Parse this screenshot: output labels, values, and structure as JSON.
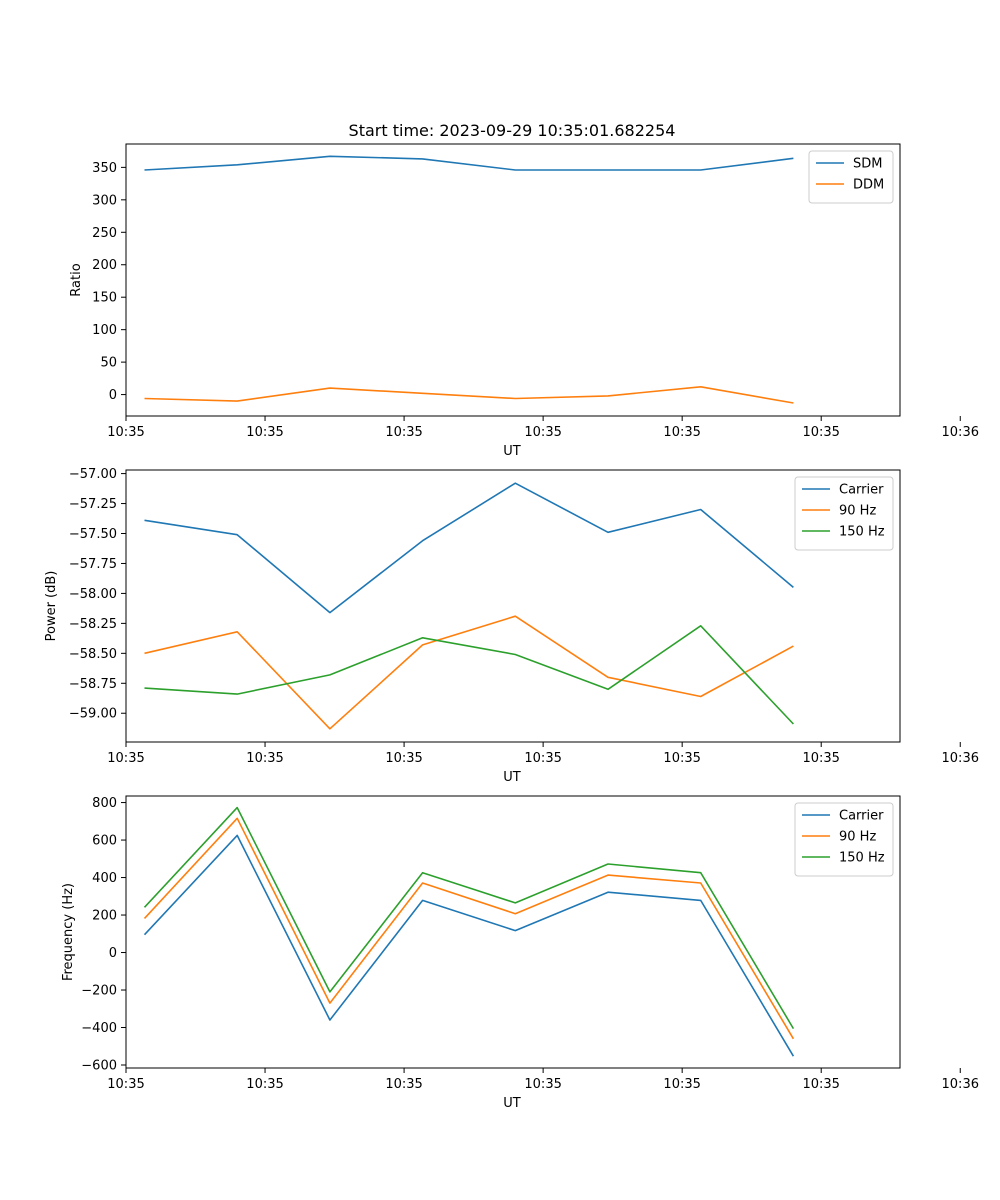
{
  "title": "Start time: 2023-09-29 10:35:01.682254",
  "chart_data": [
    {
      "type": "line",
      "title": "Start time: 2023-09-29 10:35:01.682254",
      "xlabel": "UT",
      "ylabel": "Ratio",
      "x": [
        1,
        2,
        3,
        4,
        5,
        6,
        7,
        8
      ],
      "xlim": [
        0.8,
        9.15
      ],
      "ylim": [
        -33,
        386
      ],
      "xticks": [
        0.8,
        2.3,
        3.8,
        5.3,
        6.8,
        8.3,
        9.8
      ],
      "xtick_labels": [
        "10:35",
        "10:35",
        "10:35",
        "10:35",
        "10:35",
        "10:35",
        "10:36"
      ],
      "yticks": [
        0,
        50,
        100,
        150,
        200,
        250,
        300,
        350
      ],
      "ytick_labels": [
        "0",
        "50",
        "100",
        "150",
        "200",
        "250",
        "300",
        "350"
      ],
      "legend": "top-right",
      "series": [
        {
          "name": "SDM",
          "color": "#1f77b4",
          "values": [
            346,
            354,
            367,
            363,
            346,
            346,
            346,
            364
          ]
        },
        {
          "name": "DDM",
          "color": "#ff7f0e",
          "values": [
            -6,
            -10,
            10,
            2,
            -6,
            -2,
            12,
            -13
          ]
        }
      ]
    },
    {
      "type": "line",
      "xlabel": "UT",
      "ylabel": "Power (dB)",
      "x": [
        1,
        2,
        3,
        4,
        5,
        6,
        7,
        8
      ],
      "xlim": [
        0.8,
        9.15
      ],
      "ylim": [
        -59.24,
        -56.97
      ],
      "xticks": [
        0.8,
        2.3,
        3.8,
        5.3,
        6.8,
        8.3,
        9.8
      ],
      "xtick_labels": [
        "10:35",
        "10:35",
        "10:35",
        "10:35",
        "10:35",
        "10:35",
        "10:36"
      ],
      "yticks": [
        -59.0,
        -58.75,
        -58.5,
        -58.25,
        -58.0,
        -57.75,
        -57.5,
        -57.25,
        -57.0
      ],
      "ytick_labels": [
        "−59.00",
        "−58.75",
        "−58.50",
        "−58.25",
        "−58.00",
        "−57.75",
        "−57.50",
        "−57.25",
        "−57.00"
      ],
      "legend": "top-right",
      "series": [
        {
          "name": "Carrier",
          "color": "#1f77b4",
          "values": [
            -57.39,
            -57.51,
            -58.16,
            -57.56,
            -57.08,
            -57.49,
            -57.3,
            -57.95
          ]
        },
        {
          "name": "90 Hz",
          "color": "#ff7f0e",
          "values": [
            -58.5,
            -58.32,
            -59.13,
            -58.43,
            -58.19,
            -58.7,
            -58.86,
            -58.44
          ]
        },
        {
          "name": "150 Hz",
          "color": "#2ca02c",
          "values": [
            -58.79,
            -58.84,
            -58.68,
            -58.37,
            -58.51,
            -58.8,
            -58.27,
            -59.09
          ]
        }
      ]
    },
    {
      "type": "line",
      "xlabel": "UT",
      "ylabel": "Frequency (Hz)",
      "x": [
        1,
        2,
        3,
        4,
        5,
        6,
        7,
        8
      ],
      "xlim": [
        0.8,
        9.15
      ],
      "ylim": [
        -616,
        835
      ],
      "xticks": [
        0.8,
        2.3,
        3.8,
        5.3,
        6.8,
        8.3,
        9.8
      ],
      "xtick_labels": [
        "10:35",
        "10:35",
        "10:35",
        "10:35",
        "10:35",
        "10:35",
        "10:36"
      ],
      "yticks": [
        -600,
        -400,
        -200,
        0,
        200,
        400,
        600,
        800
      ],
      "ytick_labels": [
        "−600",
        "−400",
        "−200",
        "0",
        "200",
        "400",
        "600",
        "800"
      ],
      "legend": "top-right",
      "series": [
        {
          "name": "Carrier",
          "color": "#1f77b4",
          "values": [
            95,
            625,
            -360,
            278,
            117,
            322,
            278,
            -553
          ]
        },
        {
          "name": "90 Hz",
          "color": "#ff7f0e",
          "values": [
            182,
            716,
            -270,
            371,
            207,
            413,
            371,
            -460
          ]
        },
        {
          "name": "150 Hz",
          "color": "#2ca02c",
          "values": [
            241,
            773,
            -210,
            426,
            265,
            472,
            426,
            -406
          ]
        }
      ]
    }
  ]
}
